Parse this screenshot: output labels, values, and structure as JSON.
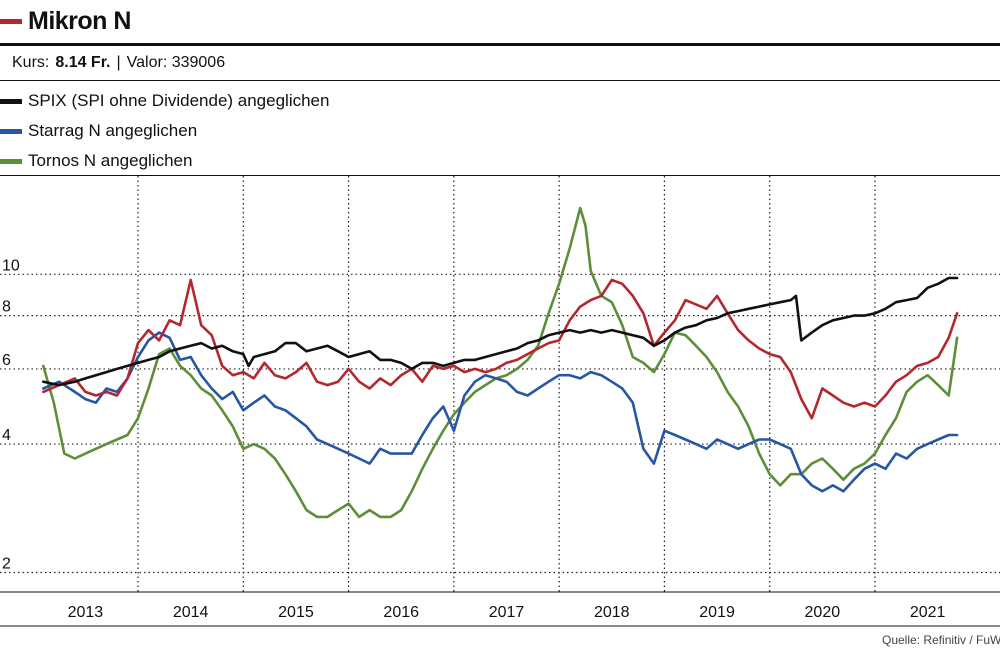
{
  "header": {
    "title": "Mikron N",
    "title_color": "#b5272f",
    "kurs_label": "Kurs:",
    "kurs_value": "8.14 Fr.",
    "valor": "Valor: 339006"
  },
  "source": "Quelle: Refinitiv / FuW",
  "chart_data": {
    "type": "line",
    "title": "Mikron N",
    "y_scale": "log",
    "ylim": [
      1.8,
      17
    ],
    "yticks": [
      2,
      4,
      6,
      8,
      10
    ],
    "xlim": [
      2012.55,
      2021.45
    ],
    "x_ticks": [
      2013,
      2014,
      2015,
      2016,
      2017,
      2018,
      2019,
      2020,
      2021
    ],
    "x_tick_labels": [
      "2013",
      "2014",
      "2015",
      "2016",
      "2017",
      "2018",
      "2019",
      "2020",
      "2021"
    ],
    "x_grid": [
      2013.5,
      2014.5,
      2015.5,
      2016.5,
      2017.5,
      2018.5,
      2019.5,
      2020.5
    ],
    "series": [
      {
        "name": "Mikron N",
        "legend": "",
        "color": "#b5272f",
        "x": [
          2012.6,
          2012.75,
          2012.9,
          2013.0,
          2013.1,
          2013.2,
          2013.3,
          2013.4,
          2013.5,
          2013.6,
          2013.7,
          2013.8,
          2013.9,
          2014.0,
          2014.05,
          2014.1,
          2014.2,
          2014.3,
          2014.4,
          2014.5,
          2014.6,
          2014.7,
          2014.8,
          2014.9,
          2015.0,
          2015.1,
          2015.2,
          2015.3,
          2015.4,
          2015.5,
          2015.6,
          2015.7,
          2015.8,
          2015.9,
          2016.0,
          2016.1,
          2016.2,
          2016.3,
          2016.4,
          2016.5,
          2016.6,
          2016.7,
          2016.8,
          2016.9,
          2017.0,
          2017.1,
          2017.2,
          2017.3,
          2017.4,
          2017.5,
          2017.6,
          2017.7,
          2017.8,
          2017.9,
          2018.0,
          2018.1,
          2018.2,
          2018.3,
          2018.4,
          2018.5,
          2018.6,
          2018.7,
          2018.8,
          2018.9,
          2019.0,
          2019.1,
          2019.2,
          2019.3,
          2019.4,
          2019.5,
          2019.6,
          2019.7,
          2019.8,
          2019.9,
          2020.0,
          2020.1,
          2020.2,
          2020.3,
          2020.4,
          2020.5,
          2020.6,
          2020.7,
          2020.8,
          2020.9,
          2021.0,
          2021.1,
          2021.2,
          2021.28
        ],
        "values": [
          5.3,
          5.5,
          5.7,
          5.3,
          5.2,
          5.3,
          5.2,
          5.7,
          6.9,
          7.4,
          7.0,
          7.8,
          7.6,
          9.7,
          8.6,
          7.6,
          7.2,
          6.1,
          5.8,
          5.9,
          5.7,
          6.2,
          5.8,
          5.7,
          5.9,
          6.2,
          5.6,
          5.5,
          5.6,
          6.0,
          5.6,
          5.4,
          5.7,
          5.5,
          5.8,
          6.0,
          5.6,
          6.1,
          6.0,
          6.1,
          5.9,
          6.0,
          5.9,
          6.0,
          6.2,
          6.3,
          6.5,
          6.7,
          6.9,
          7.0,
          7.8,
          8.4,
          8.7,
          8.9,
          9.7,
          9.5,
          8.9,
          8.1,
          6.8,
          7.3,
          7.8,
          8.7,
          8.5,
          8.3,
          8.9,
          8.1,
          7.4,
          7.0,
          6.7,
          6.5,
          6.4,
          5.9,
          5.1,
          4.6,
          5.4,
          5.2,
          5.0,
          4.9,
          5.0,
          4.9,
          5.2,
          5.6,
          5.8,
          6.1,
          6.2,
          6.4,
          7.1,
          8.1
        ]
      },
      {
        "name": "SPIX",
        "legend": "SPIX (SPI ohne Dividende) angeglichen",
        "color": "#111111",
        "x": [
          2012.6,
          2012.75,
          2012.9,
          2013.0,
          2013.1,
          2013.2,
          2013.3,
          2013.4,
          2013.5,
          2013.6,
          2013.7,
          2013.8,
          2013.9,
          2014.0,
          2014.1,
          2014.2,
          2014.3,
          2014.4,
          2014.5,
          2014.55,
          2014.6,
          2014.7,
          2014.8,
          2014.9,
          2015.0,
          2015.1,
          2015.2,
          2015.3,
          2015.4,
          2015.5,
          2015.6,
          2015.7,
          2015.8,
          2015.9,
          2016.0,
          2016.1,
          2016.2,
          2016.3,
          2016.4,
          2016.5,
          2016.6,
          2016.7,
          2016.8,
          2016.9,
          2017.0,
          2017.1,
          2017.2,
          2017.3,
          2017.4,
          2017.5,
          2017.6,
          2017.7,
          2017.8,
          2017.9,
          2018.0,
          2018.1,
          2018.2,
          2018.3,
          2018.4,
          2018.5,
          2018.6,
          2018.7,
          2018.8,
          2018.9,
          2019.0,
          2019.1,
          2019.2,
          2019.3,
          2019.4,
          2019.5,
          2019.6,
          2019.7,
          2019.75,
          2019.8,
          2019.9,
          2020.0,
          2020.1,
          2020.2,
          2020.3,
          2020.4,
          2020.5,
          2020.6,
          2020.7,
          2020.8,
          2020.9,
          2021.0,
          2021.1,
          2021.2,
          2021.28
        ],
        "values": [
          5.6,
          5.5,
          5.6,
          5.7,
          5.8,
          5.9,
          6.0,
          6.1,
          6.2,
          6.3,
          6.4,
          6.6,
          6.7,
          6.8,
          6.9,
          6.7,
          6.8,
          6.6,
          6.5,
          6.1,
          6.4,
          6.5,
          6.6,
          6.9,
          6.9,
          6.6,
          6.7,
          6.8,
          6.6,
          6.4,
          6.5,
          6.6,
          6.3,
          6.3,
          6.2,
          6.0,
          6.2,
          6.2,
          6.1,
          6.2,
          6.3,
          6.3,
          6.4,
          6.5,
          6.6,
          6.7,
          6.9,
          7.0,
          7.2,
          7.3,
          7.4,
          7.3,
          7.4,
          7.3,
          7.4,
          7.3,
          7.2,
          7.1,
          6.8,
          7.0,
          7.3,
          7.5,
          7.6,
          7.8,
          7.9,
          8.1,
          8.2,
          8.3,
          8.4,
          8.5,
          8.6,
          8.7,
          8.9,
          7.0,
          7.3,
          7.6,
          7.8,
          7.9,
          8.0,
          8.0,
          8.1,
          8.3,
          8.6,
          8.7,
          8.8,
          9.3,
          9.5,
          9.8,
          9.8
        ]
      },
      {
        "name": "Starrag N",
        "legend": "Starrag N angeglichen",
        "color": "#2756a3",
        "x": [
          2012.6,
          2012.75,
          2012.9,
          2013.0,
          2013.1,
          2013.2,
          2013.3,
          2013.4,
          2013.5,
          2013.6,
          2013.7,
          2013.8,
          2013.9,
          2014.0,
          2014.1,
          2014.2,
          2014.3,
          2014.4,
          2014.5,
          2014.6,
          2014.7,
          2014.8,
          2014.9,
          2015.0,
          2015.1,
          2015.2,
          2015.3,
          2015.4,
          2015.5,
          2015.6,
          2015.7,
          2015.8,
          2015.9,
          2016.0,
          2016.1,
          2016.2,
          2016.3,
          2016.4,
          2016.5,
          2016.6,
          2016.7,
          2016.8,
          2016.9,
          2017.0,
          2017.1,
          2017.2,
          2017.3,
          2017.4,
          2017.5,
          2017.6,
          2017.7,
          2017.8,
          2017.9,
          2018.0,
          2018.1,
          2018.2,
          2018.3,
          2018.4,
          2018.5,
          2018.6,
          2018.7,
          2018.8,
          2018.9,
          2019.0,
          2019.1,
          2019.2,
          2019.3,
          2019.4,
          2019.5,
          2019.6,
          2019.7,
          2019.8,
          2019.9,
          2020.0,
          2020.1,
          2020.2,
          2020.3,
          2020.4,
          2020.5,
          2020.6,
          2020.7,
          2020.8,
          2020.9,
          2021.0,
          2021.1,
          2021.2,
          2021.28
        ],
        "values": [
          5.4,
          5.6,
          5.3,
          5.1,
          5.0,
          5.4,
          5.3,
          5.7,
          6.4,
          7.0,
          7.3,
          7.1,
          6.3,
          6.4,
          5.8,
          5.4,
          5.1,
          5.3,
          4.8,
          5.0,
          5.2,
          4.9,
          4.8,
          4.6,
          4.4,
          4.1,
          4.0,
          3.9,
          3.8,
          3.7,
          3.6,
          3.9,
          3.8,
          3.8,
          3.8,
          4.2,
          4.6,
          4.9,
          4.3,
          5.2,
          5.6,
          5.8,
          5.7,
          5.6,
          5.3,
          5.2,
          5.4,
          5.6,
          5.8,
          5.8,
          5.7,
          5.9,
          5.8,
          5.6,
          5.4,
          5.0,
          3.9,
          3.6,
          4.3,
          4.2,
          4.1,
          4.0,
          3.9,
          4.1,
          4.0,
          3.9,
          4.0,
          4.1,
          4.1,
          4.0,
          3.9,
          3.4,
          3.2,
          3.1,
          3.2,
          3.1,
          3.3,
          3.5,
          3.6,
          3.5,
          3.8,
          3.7,
          3.9,
          4.0,
          4.1,
          4.2,
          4.2
        ]
      },
      {
        "name": "Tornos N",
        "legend": "Tornos N angeglichen",
        "color": "#5d8f3a",
        "x": [
          2012.6,
          2012.7,
          2012.8,
          2012.9,
          2013.0,
          2013.1,
          2013.2,
          2013.3,
          2013.4,
          2013.5,
          2013.6,
          2013.7,
          2013.8,
          2013.9,
          2014.0,
          2014.1,
          2014.2,
          2014.3,
          2014.4,
          2014.5,
          2014.6,
          2014.7,
          2014.8,
          2014.9,
          2015.0,
          2015.1,
          2015.2,
          2015.3,
          2015.4,
          2015.5,
          2015.6,
          2015.7,
          2015.8,
          2015.9,
          2016.0,
          2016.1,
          2016.2,
          2016.3,
          2016.4,
          2016.5,
          2016.6,
          2016.7,
          2016.8,
          2016.9,
          2017.0,
          2017.1,
          2017.2,
          2017.3,
          2017.4,
          2017.5,
          2017.6,
          2017.7,
          2017.75,
          2017.8,
          2017.9,
          2018.0,
          2018.1,
          2018.2,
          2018.3,
          2018.4,
          2018.5,
          2018.6,
          2018.7,
          2018.8,
          2018.9,
          2019.0,
          2019.1,
          2019.2,
          2019.3,
          2019.4,
          2019.5,
          2019.6,
          2019.7,
          2019.8,
          2019.9,
          2020.0,
          2020.1,
          2020.2,
          2020.3,
          2020.4,
          2020.5,
          2020.6,
          2020.7,
          2020.8,
          2020.9,
          2021.0,
          2021.1,
          2021.2,
          2021.28
        ],
        "values": [
          6.1,
          5.0,
          3.8,
          3.7,
          3.8,
          3.9,
          4.0,
          4.1,
          4.2,
          4.6,
          5.4,
          6.5,
          6.7,
          6.1,
          5.8,
          5.4,
          5.2,
          4.8,
          4.4,
          3.9,
          4.0,
          3.9,
          3.7,
          3.4,
          3.1,
          2.8,
          2.7,
          2.7,
          2.8,
          2.9,
          2.7,
          2.8,
          2.7,
          2.7,
          2.8,
          3.1,
          3.5,
          3.9,
          4.3,
          4.7,
          5.0,
          5.3,
          5.5,
          5.7,
          5.8,
          6.0,
          6.3,
          6.8,
          8.1,
          9.5,
          11.5,
          14.3,
          13.0,
          10.2,
          8.9,
          8.6,
          7.6,
          6.4,
          6.2,
          5.9,
          6.5,
          7.3,
          7.2,
          6.8,
          6.4,
          5.9,
          5.3,
          4.9,
          4.4,
          3.8,
          3.4,
          3.2,
          3.4,
          3.4,
          3.6,
          3.7,
          3.5,
          3.3,
          3.5,
          3.6,
          3.8,
          4.2,
          4.6,
          5.3,
          5.6,
          5.8,
          5.5,
          5.2,
          7.1
        ]
      }
    ]
  }
}
